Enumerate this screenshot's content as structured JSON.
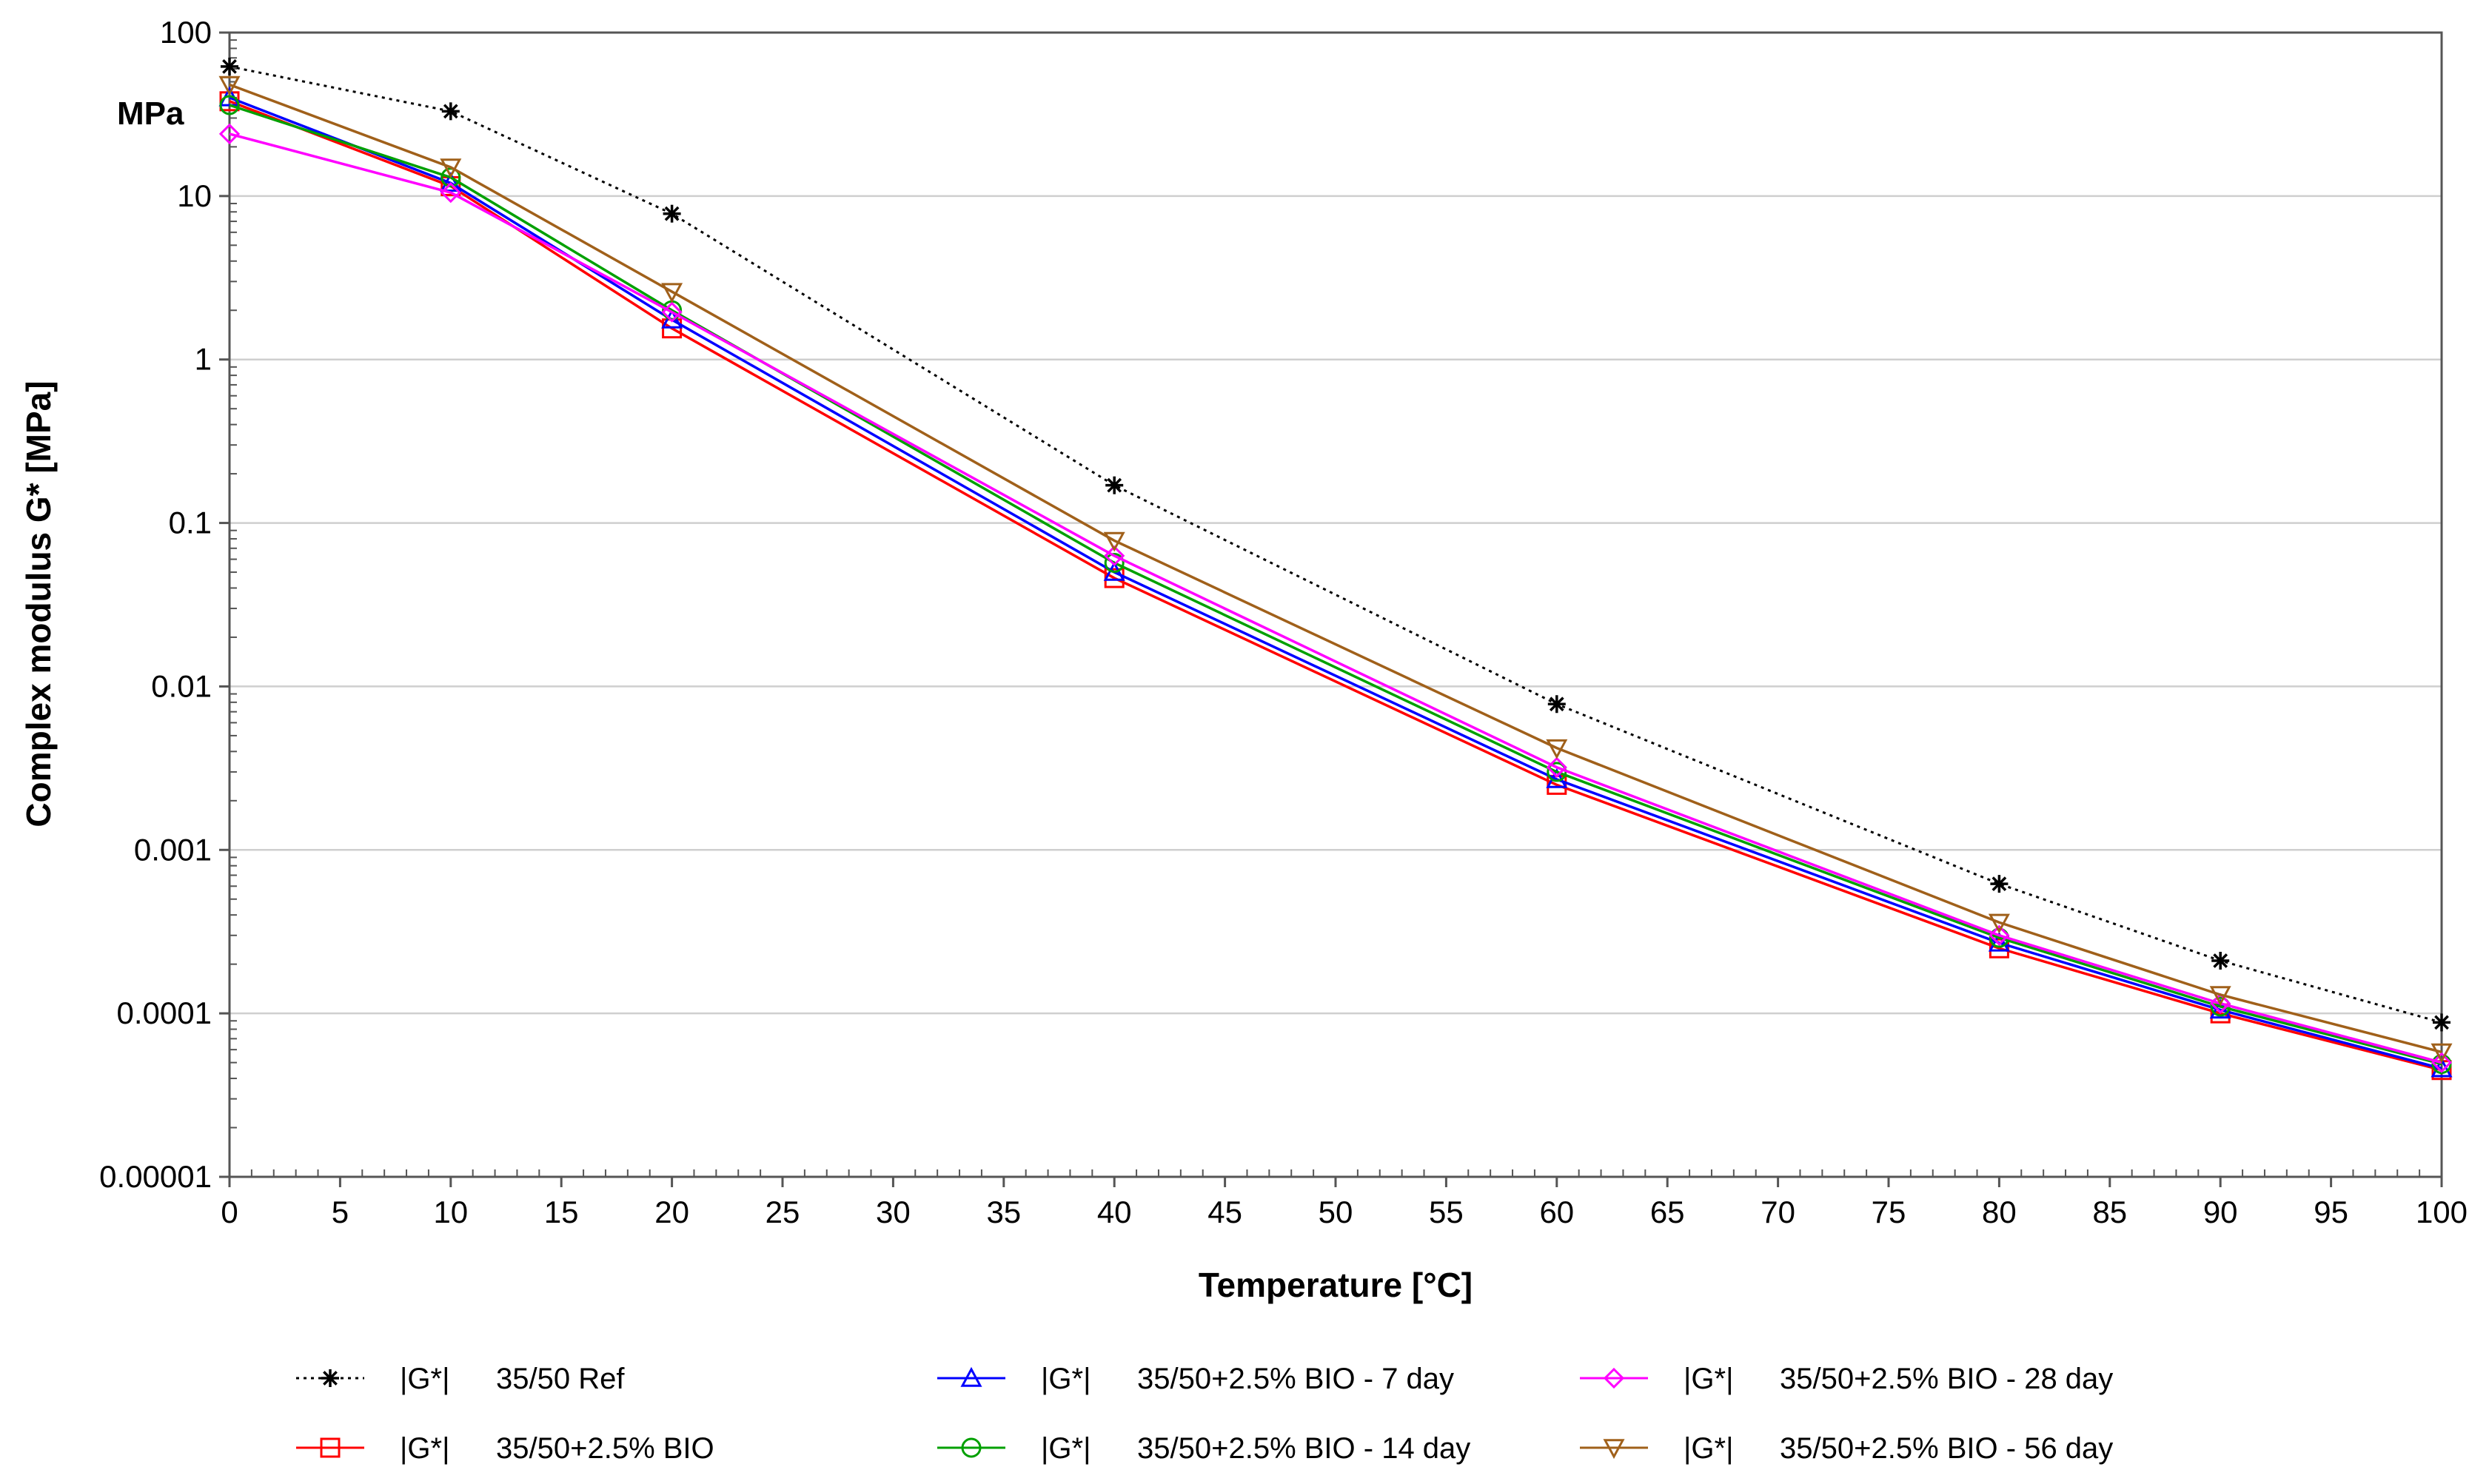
{
  "chart_data": {
    "type": "line",
    "title": "",
    "xlabel": "Temperature [°C]",
    "ylabel": "Complex modulus G* [MPa]",
    "y_unit_label": "MPa",
    "yscale": "log",
    "xlim": [
      0,
      100
    ],
    "ylim": [
      1e-05,
      100
    ],
    "x_ticks": [
      "0",
      "5",
      "10",
      "15",
      "20",
      "25",
      "30",
      "35",
      "40",
      "45",
      "50",
      "55",
      "60",
      "65",
      "70",
      "75",
      "80",
      "85",
      "90",
      "95",
      "100"
    ],
    "y_ticks": [
      "0.00001",
      "0.0001",
      "0.001",
      "0.01",
      "0.1",
      "1",
      "10",
      "100"
    ],
    "grid": true,
    "legend_position": "bottom",
    "x": [
      0,
      10,
      20,
      40,
      60,
      80,
      90,
      100
    ],
    "series": [
      {
        "name": "|G*|    35/50 Ref",
        "prefix": "|G*|",
        "label": "35/50 Ref",
        "color": "#000000",
        "marker": "star",
        "dashed": true,
        "values": [
          62,
          33,
          7.8,
          0.17,
          0.0078,
          0.00062,
          0.00021,
          8.8e-05
        ]
      },
      {
        "name": "|G*|    35/50+2.5% BIO",
        "prefix": "|G*|",
        "label": "35/50+2.5% BIO",
        "color": "#ff0000",
        "marker": "square",
        "dashed": false,
        "values": [
          38,
          11.5,
          1.55,
          0.046,
          0.0025,
          0.00025,
          0.0001,
          4.5e-05
        ]
      },
      {
        "name": "|G*|    35/50+2.5% BIO - 7 day",
        "prefix": "|G*|",
        "label": "35/50+2.5% BIO - 7 day",
        "color": "#0000ff",
        "marker": "triangle-up",
        "dashed": false,
        "values": [
          40,
          12,
          1.75,
          0.05,
          0.0027,
          0.00027,
          0.000105,
          4.6e-05
        ]
      },
      {
        "name": "|G*|    35/50+2.5% BIO - 14 day",
        "prefix": "|G*|",
        "label": "35/50+2.5% BIO - 14 day",
        "color": "#00a000",
        "marker": "circle",
        "dashed": false,
        "values": [
          36,
          13,
          2.0,
          0.057,
          0.003,
          0.00029,
          0.00011,
          4.9e-05
        ]
      },
      {
        "name": "|G*|    35/50+2.5% BIO - 28 day",
        "prefix": "|G*|",
        "label": "35/50+2.5% BIO - 28 day",
        "color": "#ff00ff",
        "marker": "diamond",
        "dashed": false,
        "values": [
          24,
          10.5,
          1.95,
          0.063,
          0.0032,
          0.0003,
          0.000115,
          5e-05
        ]
      },
      {
        "name": "|G*|    35/50+2.5% BIO - 56 day",
        "prefix": "|G*|",
        "label": "35/50+2.5% BIO - 56 day",
        "color": "#a0601a",
        "marker": "triangle-down",
        "dashed": false,
        "values": [
          48,
          15,
          2.6,
          0.078,
          0.0042,
          0.00036,
          0.00013,
          5.8e-05
        ]
      }
    ],
    "legend_layout": [
      [
        0,
        2,
        4
      ],
      [
        1,
        3,
        5
      ]
    ]
  }
}
